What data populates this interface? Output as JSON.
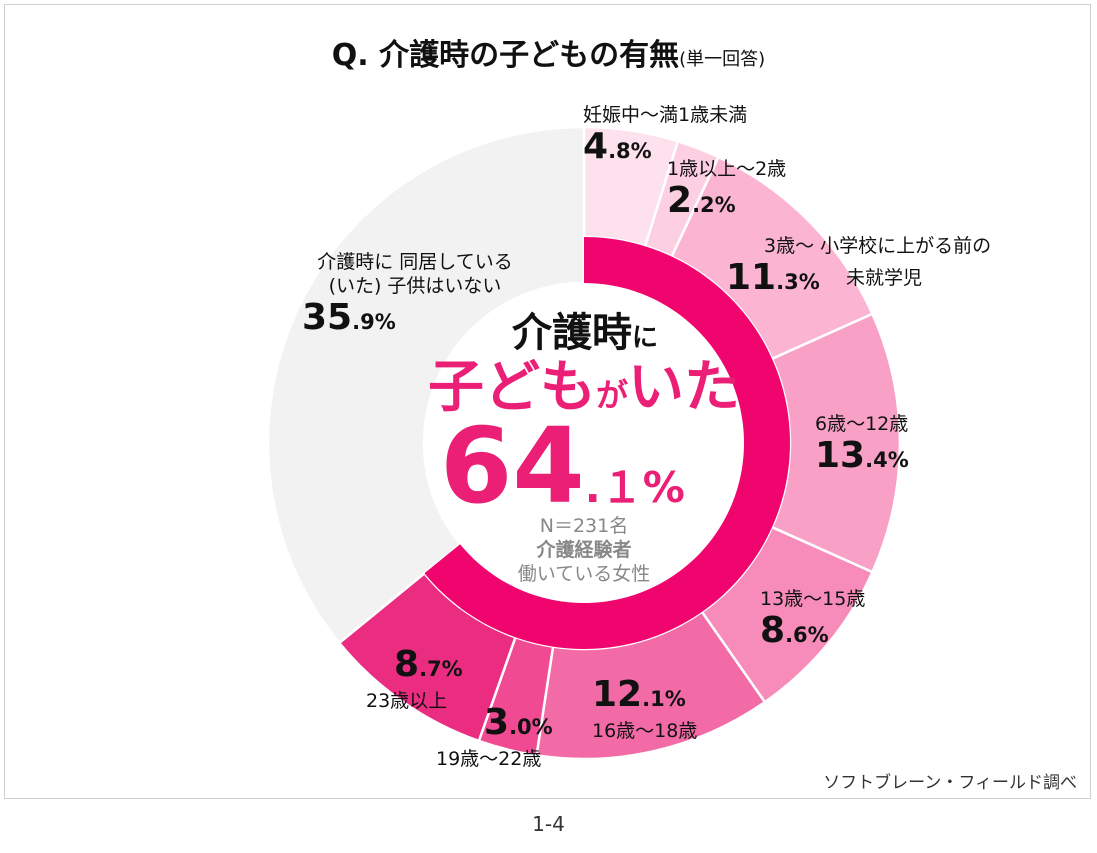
{
  "title": "Q.  介護時の子どもの有無",
  "title_note": "(単一回答)",
  "center": {
    "line1": "介護時",
    "line1_suffix": "に",
    "line2a": "子ども",
    "line2b": "が",
    "line2c": "いた",
    "pct_int": "64",
    "pct_dec": ".１%",
    "n": "N＝231名",
    "group": "介護経験者",
    "sub": "働いている女性"
  },
  "source": "ソフトブレーン・フィールド調べ",
  "page": "1-4",
  "chart_data": {
    "type": "pie",
    "subtype": "donut",
    "inner_ring": {
      "label": "子どもがいた",
      "value": 64.1,
      "color": "#f0056e"
    },
    "slices": [
      {
        "label": "妊娠中～満1歳未満",
        "value": 4.8,
        "int": "4",
        "dec": ".8%",
        "color": "#fde1ec"
      },
      {
        "label": "1歳以上～2歳",
        "value": 2.2,
        "int": "2",
        "dec": ".2%",
        "color": "#fccfe1"
      },
      {
        "label": "3歳～ 小学校に上がる前の 未就学児",
        "value": 11.3,
        "int": "11",
        "dec": ".3%",
        "color": "#fbb5d2"
      },
      {
        "label": "6歳～12歳",
        "value": 13.4,
        "int": "13",
        "dec": ".4%",
        "color": "#f9a0c6"
      },
      {
        "label": "13歳～15歳",
        "value": 8.6,
        "int": "8",
        "dec": ".6%",
        "color": "#f78bb9"
      },
      {
        "label": "16歳～18歳",
        "value": 12.1,
        "int": "12",
        "dec": ".1%",
        "color": "#f36ba6"
      },
      {
        "label": "19歳～22歳",
        "value": 3.0,
        "int": "3",
        "dec": ".0%",
        "color": "#ef4a92"
      },
      {
        "label": "23歳以上",
        "value": 8.7,
        "int": "8",
        "dec": ".7%",
        "color": "#eb2d82"
      },
      {
        "label": "介護時に 同居している(いた) 子供はいない",
        "value": 35.9,
        "int": "35",
        "dec": ".9%",
        "color": "#f2f2f2"
      }
    ]
  }
}
